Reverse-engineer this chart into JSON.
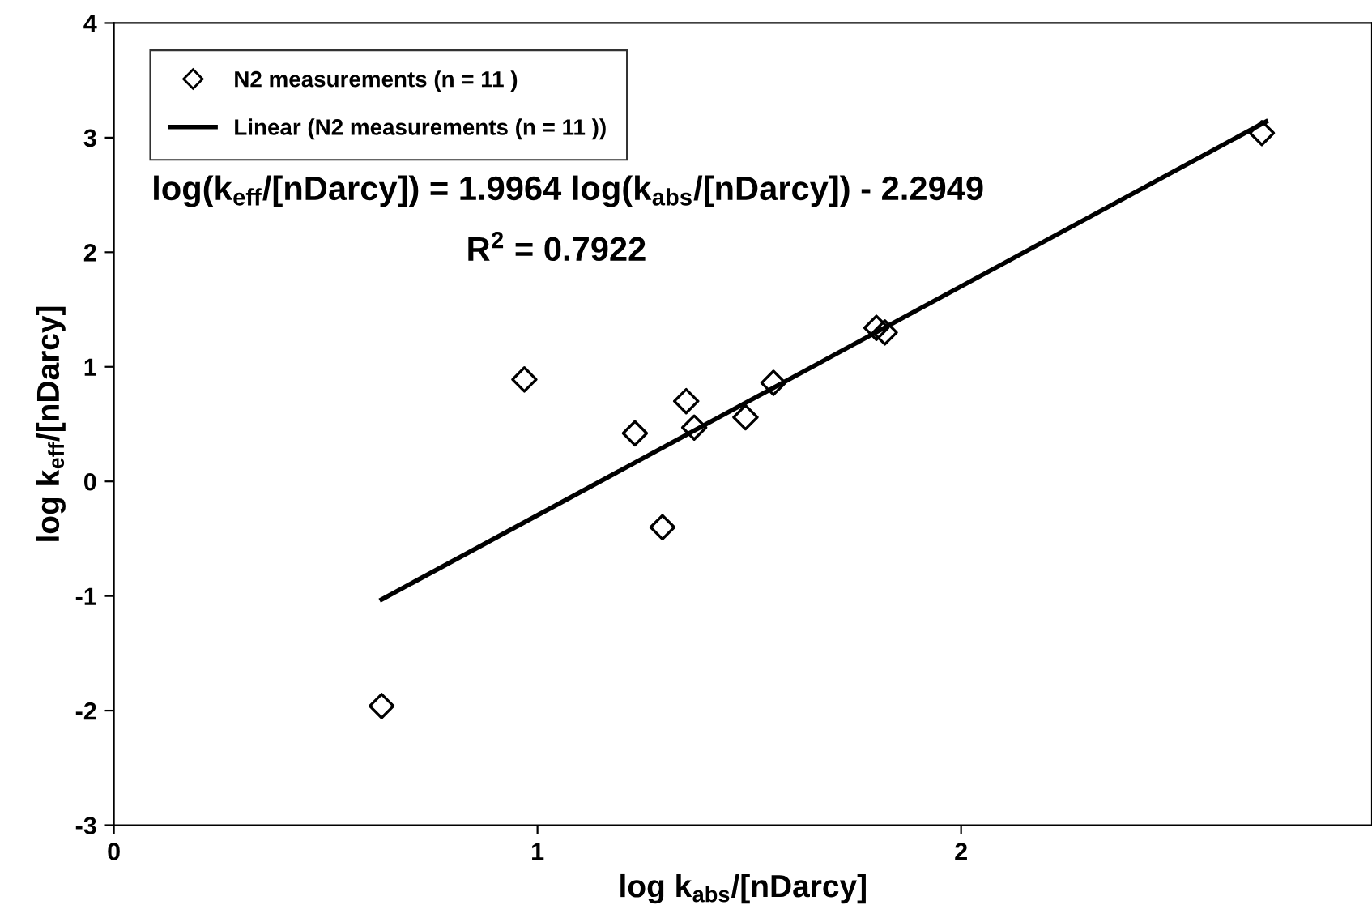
{
  "chart_data": {
    "type": "scatter",
    "xlabel": "log k$_{abs}$/[nDarcy]",
    "ylabel": "log k$_{eff}$/[nDarcy]",
    "xlim": [
      0,
      2.97
    ],
    "xticks": [
      0,
      1,
      2
    ],
    "ylim": [
      -3,
      4
    ],
    "yticks": [
      -3,
      -2,
      -1,
      0,
      1,
      2,
      3,
      4
    ],
    "grid": false,
    "legend": "top left",
    "marker": "diamond",
    "series": [
      {
        "name": "N2 measurements (n = 11 )",
        "color": "#000000",
        "x": [
          0.632,
          0.969,
          1.23,
          1.295,
          1.351,
          1.37,
          1.491,
          1.557,
          1.8,
          1.82,
          2.71
        ],
        "values": [
          -1.96,
          0.89,
          0.42,
          -0.4,
          0.7,
          0.47,
          0.56,
          0.86,
          1.34,
          1.3,
          3.04
        ]
      },
      {
        "name": "Linear (N2 measurements (n = 11 ))",
        "type": "line",
        "color": "#000000",
        "line_style": "solid",
        "marker": "none",
        "x": [
          0.632,
          2.72
        ],
        "values": [
          -1.03,
          3.14
        ]
      }
    ],
    "annotations": [
      "log(k$_{eff}$/[nDarcy]) = 1.9964 log(k$_{abs}$/[nDarcy]) - 2.2949",
      "R$^{2}$ = 0.7922"
    ]
  }
}
